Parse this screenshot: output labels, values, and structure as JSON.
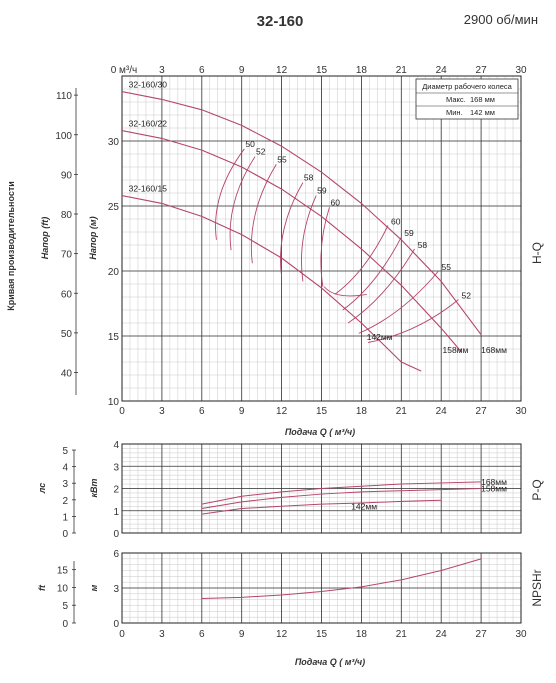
{
  "title": "32-160",
  "speed": "2900 об/мин",
  "colors": {
    "curve": "#b5456b",
    "grid_major": "#333333",
    "grid_minor": "#c8c8c8"
  },
  "left_side_label": "Кривая производительности",
  "legend": {
    "title": "Диаметр рабочего колеса",
    "max_label": "Макс.",
    "max_value": "168 мм",
    "min_label": "Мин.",
    "min_value": "142 мм"
  },
  "chart_data": [
    {
      "type": "line",
      "name_right": "H-Q",
      "xlabel": "Подача Q ( м³/ч)",
      "top_axis_unit": "м³/ч",
      "xlim": [
        0,
        30
      ],
      "xticks": [
        0,
        3,
        6,
        9,
        12,
        15,
        18,
        21,
        24,
        27,
        30
      ],
      "ylabel_left": "Напор (м)",
      "ylabel_far_left": "Напор (ft)",
      "ylim": [
        10,
        35
      ],
      "yticks": [
        10,
        15,
        20,
        25,
        30
      ],
      "ft_ticks": [
        40,
        50,
        60,
        70,
        80,
        90,
        100,
        110
      ],
      "series": [
        {
          "name": "32-160/30",
          "x": [
            0,
            3,
            6,
            9,
            12,
            15,
            18,
            21,
            24,
            27
          ],
          "y": [
            33.8,
            33.2,
            32.4,
            31.2,
            29.6,
            27.6,
            25.2,
            22.4,
            19.2,
            15.1
          ]
        },
        {
          "name": "32-160/22",
          "x": [
            0,
            3,
            6,
            9,
            12,
            15,
            18,
            21,
            24,
            25.5
          ],
          "y": [
            30.8,
            30.2,
            29.3,
            28.0,
            26.3,
            24.2,
            21.7,
            18.9,
            15.6,
            13.8
          ]
        },
        {
          "name": "32-160/15",
          "x": [
            0,
            3,
            6,
            9,
            12,
            15,
            18,
            21,
            22.5
          ],
          "y": [
            25.8,
            25.2,
            24.2,
            22.8,
            21.0,
            18.7,
            16.0,
            13.0,
            12.3
          ]
        }
      ],
      "efficiency_labels": [
        "50",
        "52",
        "55",
        "58",
        "59",
        "60",
        "60",
        "59",
        "58",
        "55",
        "52"
      ],
      "diameter_labels": [
        "142мм",
        "158мм",
        "168мм"
      ]
    },
    {
      "type": "line",
      "name_right": "P-Q",
      "ylabel_left": "кВт",
      "ylabel_far_left": "лс",
      "ylim": [
        0,
        4
      ],
      "yticks": [
        0,
        1,
        2,
        3,
        4
      ],
      "hp_ticks": [
        0,
        1,
        2,
        3,
        4,
        5
      ],
      "xlim": [
        0,
        30
      ],
      "series": [
        {
          "name": "168мм",
          "x": [
            6,
            9,
            12,
            15,
            18,
            21,
            24,
            27
          ],
          "y": [
            1.3,
            1.65,
            1.85,
            2.0,
            2.1,
            2.2,
            2.25,
            2.3
          ]
        },
        {
          "name": "158мм",
          "x": [
            6,
            9,
            12,
            15,
            18,
            21,
            24,
            27
          ],
          "y": [
            1.1,
            1.4,
            1.6,
            1.75,
            1.85,
            1.9,
            1.95,
            2.0
          ]
        },
        {
          "name": "142мм",
          "x": [
            6,
            9,
            12,
            15,
            18,
            21,
            24
          ],
          "y": [
            0.85,
            1.1,
            1.2,
            1.3,
            1.35,
            1.42,
            1.47
          ]
        }
      ]
    },
    {
      "type": "line",
      "name_right": "NPSHr",
      "ylabel_left": "м",
      "ylabel_far_left": "ft",
      "ylim": [
        0,
        6
      ],
      "yticks": [
        0,
        3,
        6
      ],
      "ft_ticks": [
        0,
        5,
        10,
        15
      ],
      "xlim": [
        0,
        30
      ],
      "xticks": [
        0,
        3,
        6,
        9,
        12,
        15,
        18,
        21,
        24,
        27,
        30
      ],
      "xlabel": "Подача Q ( м³/ч)",
      "series": [
        {
          "name": "NPSHr",
          "x": [
            6,
            9,
            12,
            15,
            18,
            21,
            24,
            27
          ],
          "y": [
            2.1,
            2.2,
            2.4,
            2.7,
            3.1,
            3.7,
            4.5,
            5.5
          ]
        }
      ]
    }
  ]
}
